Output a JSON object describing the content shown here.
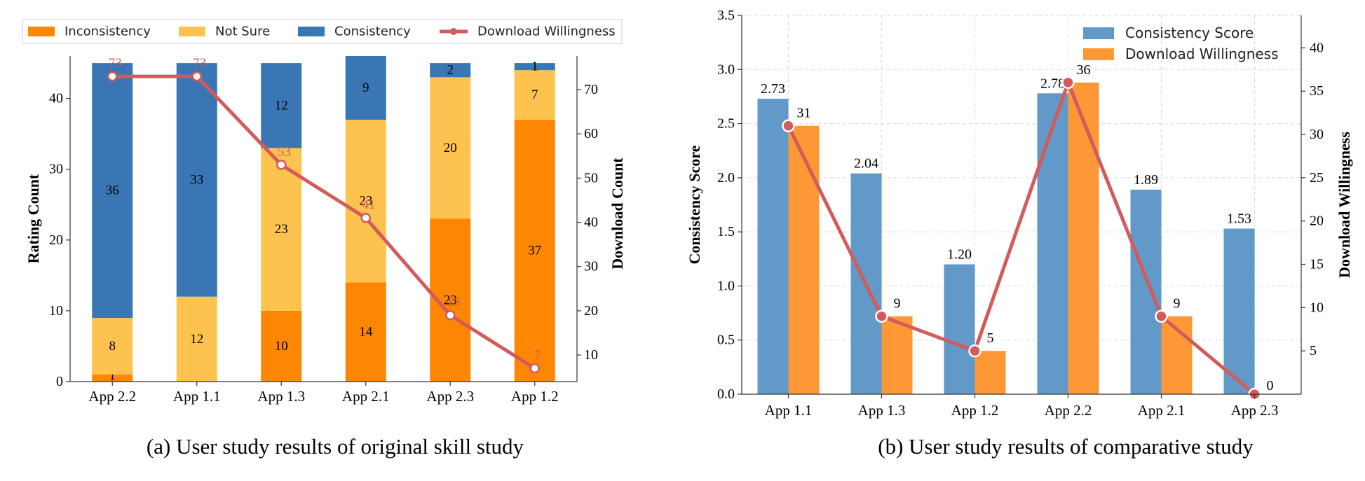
{
  "colors": {
    "inconsistency": "#fd8603",
    "not_sure": "#fec24f",
    "consistency": "#3a76b3",
    "line": "#d35b5b",
    "consistency_score": "#6199c8",
    "download_bar": "#fd9836"
  },
  "chart_data": [
    {
      "type": "bar",
      "stacked": true,
      "caption": "(a) User study results of original skill study",
      "categories": [
        "App 2.2",
        "App 1.1",
        "App 1.3",
        "App 2.1",
        "App 2.3",
        "App 1.2"
      ],
      "series": [
        {
          "name": "Inconsistency",
          "values": [
            1,
            0,
            10,
            14,
            23,
            37
          ]
        },
        {
          "name": "Not Sure",
          "values": [
            8,
            12,
            23,
            23,
            20,
            7
          ]
        },
        {
          "name": "Consistency",
          "values": [
            36,
            33,
            12,
            9,
            2,
            1
          ]
        }
      ],
      "line_series": {
        "name": "Download Willingness",
        "values": [
          73,
          73,
          53,
          41,
          19,
          7
        ],
        "axis": "right"
      },
      "ylabel": "Rating Count",
      "y2label": "Download Count",
      "ylim": [
        0,
        46
      ],
      "y2lim": [
        4,
        77.6
      ],
      "yticks": [
        "0",
        "10",
        "20",
        "30",
        "40"
      ],
      "y2ticks": [
        "10",
        "20",
        "30",
        "40",
        "50",
        "60",
        "70"
      ],
      "legend": "top"
    },
    {
      "type": "bar",
      "caption": "(b) User study results of comparative study",
      "categories": [
        "App 1.1",
        "App 1.3",
        "App 1.2",
        "App 2.2",
        "App 2.1",
        "App 2.3"
      ],
      "series": [
        {
          "name": "Consistency Score",
          "values": [
            2.73,
            2.04,
            1.2,
            2.78,
            1.89,
            1.53
          ],
          "labels": [
            "2.73",
            "2.04",
            "1.20",
            "2.78",
            "1.89",
            "1.53"
          ],
          "axis": "left"
        },
        {
          "name": "Download Willingness",
          "values": [
            31,
            9,
            5,
            36,
            9,
            0
          ],
          "labels": [
            "31",
            "9",
            "5",
            "36",
            "9",
            "0"
          ],
          "axis": "right"
        }
      ],
      "ylabel": "Consistency Score",
      "y2label": "Download Willingness",
      "ylim": [
        0,
        3.5
      ],
      "y2lim": [
        0,
        43.75
      ],
      "yticks": [
        "0.0",
        "0.5",
        "1.0",
        "1.5",
        "2.0",
        "2.5",
        "3.0",
        "3.5"
      ],
      "y2ticks": [
        "5",
        "10",
        "15",
        "20",
        "25",
        "30",
        "35",
        "40"
      ],
      "legend": "top-right",
      "grid": true
    }
  ]
}
